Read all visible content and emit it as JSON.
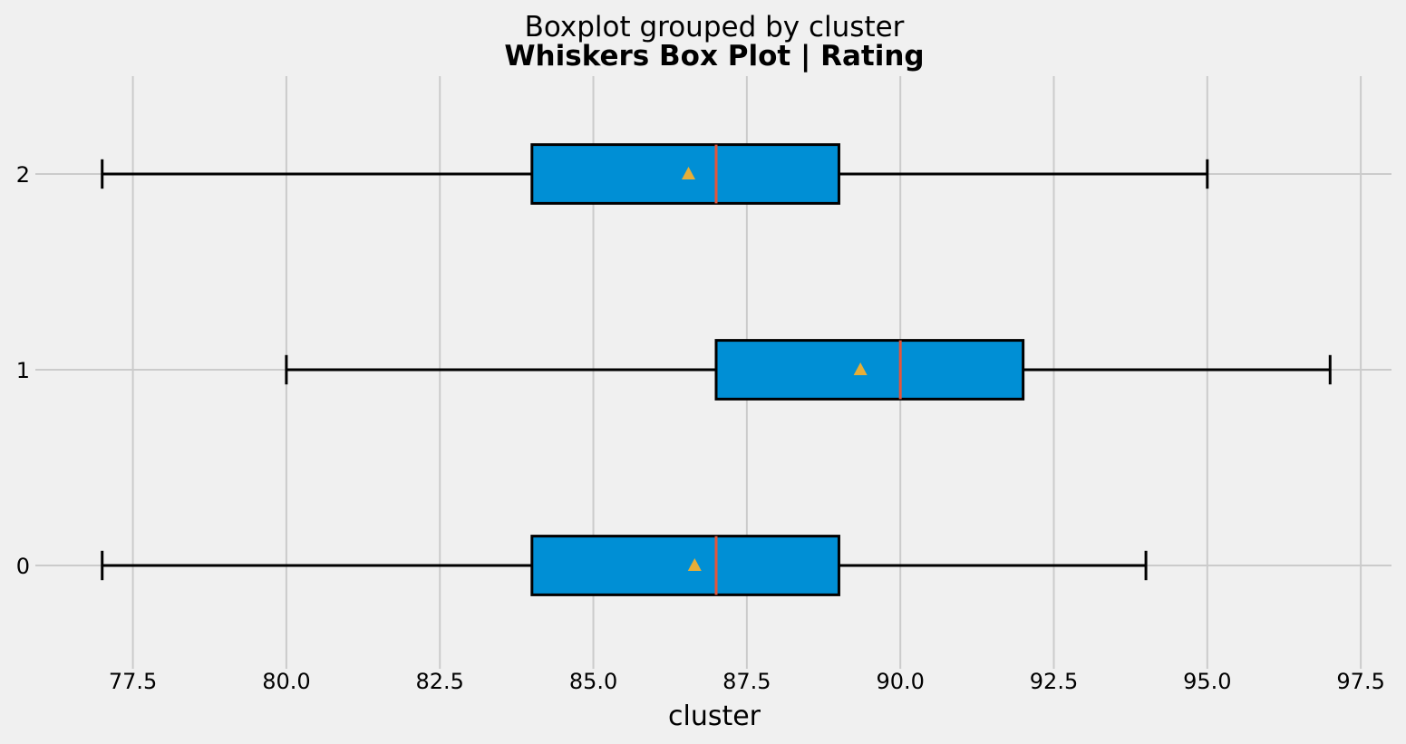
{
  "chart_data": {
    "type": "box",
    "orientation": "horizontal",
    "suptitle": "Boxplot grouped by cluster",
    "title": "Whiskers Box Plot | Rating",
    "xlabel": "cluster",
    "ylabel": "",
    "xlim": [
      76.0,
      98.0
    ],
    "ylim": [
      -0.5,
      2.5
    ],
    "xticks": [
      77.5,
      80.0,
      82.5,
      85.0,
      87.5,
      90.0,
      92.5,
      95.0,
      97.5
    ],
    "xtick_labels": [
      "77.5",
      "80.0",
      "82.5",
      "85.0",
      "87.5",
      "90.0",
      "92.5",
      "95.0",
      "97.5"
    ],
    "grid": true,
    "groups": [
      {
        "label": "0",
        "position": 0,
        "whislo": 77,
        "q1": 84,
        "med": 87,
        "q3": 89,
        "whishi": 94,
        "mean": 86.65
      },
      {
        "label": "1",
        "position": 1,
        "whislo": 80,
        "q1": 87,
        "med": 90,
        "q3": 92,
        "whishi": 97,
        "mean": 89.35
      },
      {
        "label": "2",
        "position": 2,
        "whislo": 77,
        "q1": 84,
        "med": 87,
        "q3": 89,
        "whishi": 95,
        "mean": 86.55
      }
    ],
    "colors": {
      "box_fill": "#008fd5",
      "median": "#e5553a",
      "mean_marker": "#e5ae38",
      "grid": "#cbcbcb",
      "background": "#f0f0f0"
    }
  }
}
